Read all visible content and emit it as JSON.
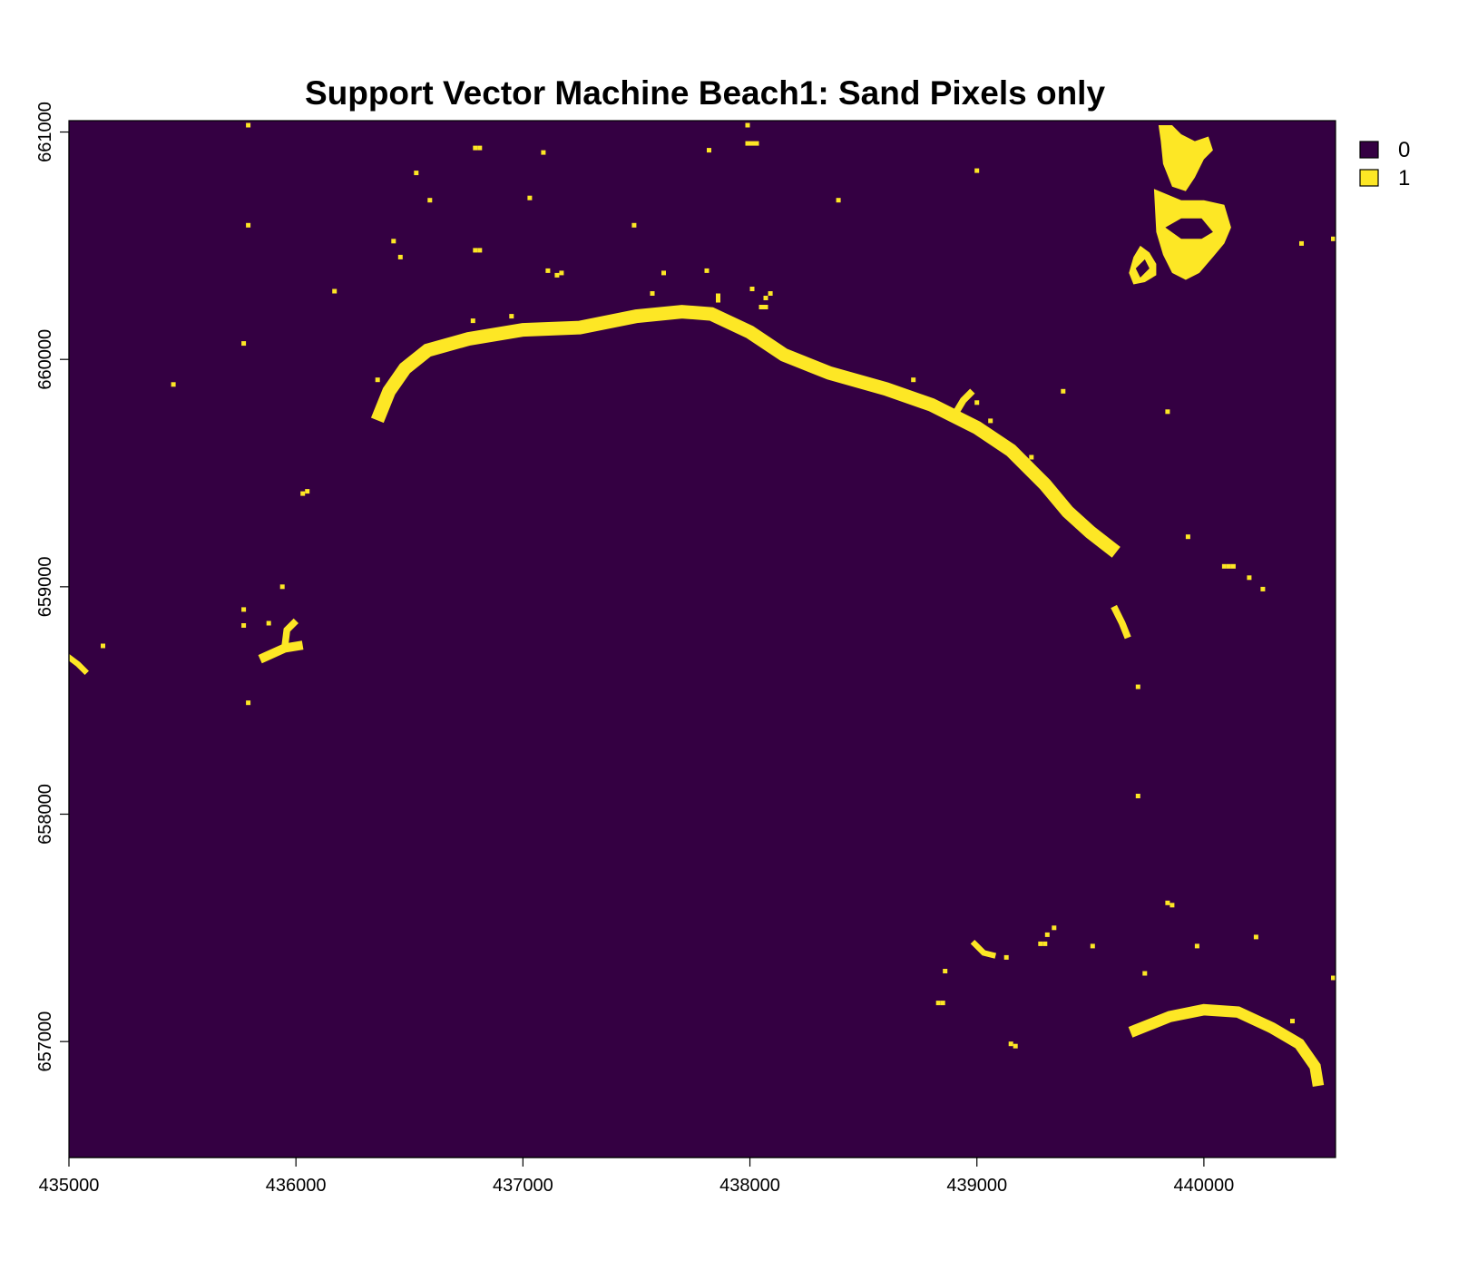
{
  "chart_data": {
    "type": "heatmap",
    "title": "Support Vector Machine Beach1: Sand Pixels only",
    "xlabel": "",
    "ylabel": "",
    "xlim": [
      435000,
      440580
    ],
    "ylim": [
      656490,
      661050
    ],
    "x_ticks": [
      435000,
      436000,
      437000,
      438000,
      439000,
      440000
    ],
    "x_tick_labels": [
      "435000",
      "436000",
      "437000",
      "438000",
      "439000",
      "440000"
    ],
    "y_ticks": [
      657000,
      658000,
      659000,
      660000,
      661000
    ],
    "y_tick_labels": [
      "657000",
      "658000",
      "659000",
      "660000",
      "661000"
    ],
    "legend": {
      "position": "top-right",
      "entries": [
        {
          "label": "0",
          "value": 0,
          "color": "#340042"
        },
        {
          "label": "1",
          "value": 1,
          "color": "#FDE725"
        }
      ]
    },
    "colors": {
      "class_0": "#340042",
      "class_1": "#FDE725"
    },
    "grid": false,
    "cell_size": 20,
    "sand_polylines": [
      {
        "name": "northern-beach-arc",
        "width": 60,
        "points": [
          [
            436370,
            659760
          ],
          [
            436410,
            659860
          ],
          [
            436480,
            659960
          ],
          [
            436580,
            660040
          ],
          [
            436760,
            660090
          ],
          [
            437000,
            660130
          ],
          [
            437250,
            660140
          ],
          [
            437500,
            660190
          ],
          [
            437700,
            660210
          ],
          [
            437830,
            660200
          ],
          [
            438000,
            660120
          ],
          [
            438150,
            660020
          ],
          [
            438350,
            659940
          ],
          [
            438600,
            659870
          ],
          [
            438800,
            659800
          ],
          [
            439000,
            659700
          ],
          [
            439150,
            659600
          ],
          [
            439300,
            659450
          ],
          [
            439400,
            659330
          ],
          [
            439500,
            659240
          ],
          [
            439590,
            659170
          ]
        ]
      },
      {
        "name": "southern-beach-arc",
        "width": 50,
        "points": [
          [
            439700,
            657050
          ],
          [
            439850,
            657110
          ],
          [
            440000,
            657140
          ],
          [
            440150,
            657130
          ],
          [
            440300,
            657060
          ],
          [
            440420,
            656990
          ],
          [
            440490,
            656890
          ],
          [
            440500,
            656830
          ]
        ]
      },
      {
        "name": "west-patch",
        "width": 40,
        "points": [
          [
            435860,
            658690
          ],
          [
            435950,
            658730
          ],
          [
            436010,
            658740
          ]
        ]
      },
      {
        "name": "west-patch-arm",
        "width": 30,
        "points": [
          [
            435950,
            658730
          ],
          [
            435960,
            658810
          ],
          [
            435990,
            658840
          ]
        ]
      },
      {
        "name": "mid-right-streak",
        "width": 30,
        "points": [
          [
            439610,
            658900
          ],
          [
            439640,
            658840
          ],
          [
            439660,
            658790
          ]
        ]
      },
      {
        "name": "spur-near-439000",
        "width": 30,
        "points": [
          [
            438910,
            659770
          ],
          [
            438940,
            659820
          ],
          [
            438970,
            659850
          ]
        ]
      },
      {
        "name": "far-west-edge",
        "width": 25,
        "points": [
          [
            435000,
            658690
          ],
          [
            435040,
            658660
          ],
          [
            435070,
            658630
          ]
        ]
      },
      {
        "name": "south-streak-1",
        "width": 25,
        "points": [
          [
            438990,
            657430
          ],
          [
            439030,
            657390
          ],
          [
            439070,
            657380
          ]
        ]
      }
    ],
    "sand_blobs": [
      {
        "name": "ne-blob-top",
        "points": [
          [
            439800,
            661030
          ],
          [
            439860,
            661030
          ],
          [
            439900,
            660990
          ],
          [
            439960,
            660960
          ],
          [
            440020,
            660980
          ],
          [
            440040,
            660920
          ],
          [
            440000,
            660880
          ],
          [
            439960,
            660800
          ],
          [
            439920,
            660740
          ],
          [
            439860,
            660760
          ],
          [
            439820,
            660860
          ],
          [
            439810,
            660960
          ]
        ]
      },
      {
        "name": "ne-blob-middle",
        "points": [
          [
            439780,
            660750
          ],
          [
            439900,
            660700
          ],
          [
            440000,
            660700
          ],
          [
            440090,
            660680
          ],
          [
            440120,
            660580
          ],
          [
            440090,
            660510
          ],
          [
            440040,
            660450
          ],
          [
            439980,
            660380
          ],
          [
            439920,
            660350
          ],
          [
            439860,
            660380
          ],
          [
            439820,
            660460
          ],
          [
            439790,
            660560
          ]
        ]
      },
      {
        "name": "ne-blob-left-ring",
        "points": [
          [
            439690,
            660450
          ],
          [
            439720,
            660500
          ],
          [
            439760,
            660470
          ],
          [
            439790,
            660420
          ],
          [
            439790,
            660370
          ],
          [
            439740,
            660340
          ],
          [
            439690,
            660330
          ],
          [
            439670,
            660380
          ]
        ]
      }
    ],
    "ne_blob_holes": [
      {
        "name": "hole-1",
        "points": [
          [
            439830,
            660580
          ],
          [
            439900,
            660620
          ],
          [
            439990,
            660620
          ],
          [
            440040,
            660560
          ],
          [
            439990,
            660530
          ],
          [
            439900,
            660530
          ]
        ]
      },
      {
        "name": "hole-2",
        "points": [
          [
            439700,
            660400
          ],
          [
            439740,
            660440
          ],
          [
            439760,
            660400
          ],
          [
            439720,
            660360
          ]
        ]
      }
    ],
    "sand_points": [
      [
        435790,
        661030
      ],
      [
        435790,
        660590
      ],
      [
        435790,
        658490
      ],
      [
        435770,
        660070
      ],
      [
        435770,
        658900
      ],
      [
        435770,
        658830
      ],
      [
        435460,
        659890
      ],
      [
        435150,
        658740
      ],
      [
        436170,
        660300
      ],
      [
        436050,
        659420
      ],
      [
        436030,
        659410
      ],
      [
        435940,
        659000
      ],
      [
        435880,
        658840
      ],
      [
        436430,
        660520
      ],
      [
        436460,
        660450
      ],
      [
        436360,
        659910
      ],
      [
        436530,
        660820
      ],
      [
        436590,
        660700
      ],
      [
        436810,
        660930
      ],
      [
        436790,
        660930
      ],
      [
        436810,
        660480
      ],
      [
        436790,
        660480
      ],
      [
        436950,
        660190
      ],
      [
        436780,
        660170
      ],
      [
        437030,
        660710
      ],
      [
        437090,
        660910
      ],
      [
        437110,
        660390
      ],
      [
        437150,
        660370
      ],
      [
        437170,
        660380
      ],
      [
        437490,
        660590
      ],
      [
        437620,
        660380
      ],
      [
        437570,
        660290
      ],
      [
        437810,
        660390
      ],
      [
        437820,
        660920
      ],
      [
        437860,
        660280
      ],
      [
        437860,
        660260
      ],
      [
        437990,
        661030
      ],
      [
        437990,
        660950
      ],
      [
        438010,
        660950
      ],
      [
        438030,
        660950
      ],
      [
        438010,
        660310
      ],
      [
        438070,
        660270
      ],
      [
        438050,
        660230
      ],
      [
        438070,
        660230
      ],
      [
        438090,
        660290
      ],
      [
        438390,
        660700
      ],
      [
        438720,
        659910
      ],
      [
        439000,
        660830
      ],
      [
        439000,
        659810
      ],
      [
        439060,
        659730
      ],
      [
        439240,
        659570
      ],
      [
        439380,
        659860
      ],
      [
        439710,
        658560
      ],
      [
        439710,
        658080
      ],
      [
        439840,
        659770
      ],
      [
        439930,
        659220
      ],
      [
        440090,
        659090
      ],
      [
        440110,
        659090
      ],
      [
        440130,
        659090
      ],
      [
        440200,
        659040
      ],
      [
        440260,
        658990
      ],
      [
        440430,
        660510
      ],
      [
        440570,
        660530
      ],
      [
        438830,
        657170
      ],
      [
        438850,
        657170
      ],
      [
        438860,
        657310
      ],
      [
        439150,
        656990
      ],
      [
        439170,
        656980
      ],
      [
        439130,
        657370
      ],
      [
        439280,
        657430
      ],
      [
        439300,
        657430
      ],
      [
        439310,
        657470
      ],
      [
        439340,
        657500
      ],
      [
        439510,
        657420
      ],
      [
        439740,
        657300
      ],
      [
        439840,
        657610
      ],
      [
        439860,
        657600
      ],
      [
        439970,
        657420
      ],
      [
        440230,
        657460
      ],
      [
        440390,
        657090
      ],
      [
        440570,
        657280
      ]
    ]
  }
}
